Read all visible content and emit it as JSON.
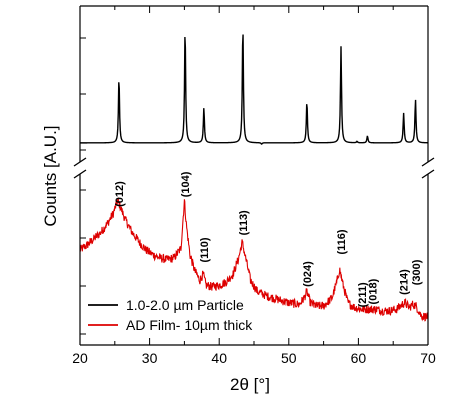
{
  "chart_data": {
    "type": "line",
    "xlabel": "2θ [°]",
    "ylabel": "Counts [A.U.]",
    "xlim": [
      20,
      70
    ],
    "xticks": [
      20,
      30,
      40,
      50,
      60,
      70
    ],
    "y_scale": "arbitrary units, broken axis between panels",
    "series": [
      {
        "name": "1.0-2.0 µm Particle",
        "color": "#000000",
        "panel": "top",
        "baseline": 0.05,
        "peaks": [
          {
            "x": 25.6,
            "y": 0.52
          },
          {
            "x": 35.1,
            "y": 0.87
          },
          {
            "x": 37.8,
            "y": 0.3
          },
          {
            "x": 43.4,
            "y": 0.89
          },
          {
            "x": 46.1,
            "y": 0.04
          },
          {
            "x": 52.6,
            "y": 0.35
          },
          {
            "x": 57.5,
            "y": 0.73
          },
          {
            "x": 59.8,
            "y": 0.06
          },
          {
            "x": 61.3,
            "y": 0.1
          },
          {
            "x": 66.5,
            "y": 0.26
          },
          {
            "x": 68.2,
            "y": 0.36
          }
        ]
      },
      {
        "name": "AD Film- 10µm thick",
        "color": "#dd0000",
        "panel": "bottom",
        "points": [
          [
            20.0,
            0.55
          ],
          [
            21.0,
            0.58
          ],
          [
            22.0,
            0.62
          ],
          [
            23.0,
            0.66
          ],
          [
            24.0,
            0.72
          ],
          [
            24.8,
            0.78
          ],
          [
            25.4,
            0.86
          ],
          [
            25.8,
            0.82
          ],
          [
            26.5,
            0.74
          ],
          [
            27.5,
            0.66
          ],
          [
            28.5,
            0.6
          ],
          [
            29.5,
            0.55
          ],
          [
            30.5,
            0.52
          ],
          [
            31.5,
            0.5
          ],
          [
            32.5,
            0.49
          ],
          [
            33.5,
            0.5
          ],
          [
            34.5,
            0.56
          ],
          [
            35.0,
            0.86
          ],
          [
            35.3,
            0.7
          ],
          [
            35.8,
            0.52
          ],
          [
            36.5,
            0.42
          ],
          [
            37.2,
            0.36
          ],
          [
            37.7,
            0.4
          ],
          [
            38.1,
            0.33
          ],
          [
            39.0,
            0.32
          ],
          [
            40.0,
            0.33
          ],
          [
            41.0,
            0.35
          ],
          [
            42.0,
            0.4
          ],
          [
            42.8,
            0.5
          ],
          [
            43.3,
            0.6
          ],
          [
            43.8,
            0.5
          ],
          [
            44.5,
            0.36
          ],
          [
            45.5,
            0.29
          ],
          [
            47.0,
            0.26
          ],
          [
            48.5,
            0.24
          ],
          [
            50.0,
            0.22
          ],
          [
            51.5,
            0.21
          ],
          [
            52.2,
            0.25
          ],
          [
            52.6,
            0.29
          ],
          [
            53.1,
            0.22
          ],
          [
            54.0,
            0.2
          ],
          [
            55.0,
            0.2
          ],
          [
            56.2,
            0.25
          ],
          [
            56.9,
            0.35
          ],
          [
            57.3,
            0.43
          ],
          [
            57.8,
            0.33
          ],
          [
            58.5,
            0.22
          ],
          [
            59.5,
            0.19
          ],
          [
            60.5,
            0.18
          ],
          [
            61.5,
            0.18
          ],
          [
            62.5,
            0.18
          ],
          [
            63.5,
            0.17
          ],
          [
            64.5,
            0.17
          ],
          [
            65.5,
            0.18
          ],
          [
            66.3,
            0.21
          ],
          [
            66.7,
            0.22
          ],
          [
            67.3,
            0.19
          ],
          [
            67.8,
            0.21
          ],
          [
            68.3,
            0.2
          ],
          [
            69.0,
            0.14
          ],
          [
            70.0,
            0.13
          ]
        ]
      }
    ],
    "peak_labels": [
      {
        "text": "(012)",
        "x": 25.6,
        "y": 0.9
      },
      {
        "text": "(104)",
        "x": 35.1,
        "y": 0.96
      },
      {
        "text": "(110)",
        "x": 37.8,
        "y": 0.55
      },
      {
        "text": "(113)",
        "x": 43.4,
        "y": 0.72
      },
      {
        "text": "(024)",
        "x": 52.6,
        "y": 0.4
      },
      {
        "text": "(116)",
        "x": 57.5,
        "y": 0.6
      },
      {
        "text": "(211)",
        "x": 60.5,
        "y": 0.27
      },
      {
        "text": "(018)",
        "x": 62.0,
        "y": 0.29
      },
      {
        "text": "(214)",
        "x": 66.5,
        "y": 0.35
      },
      {
        "text": "(300)",
        "x": 68.3,
        "y": 0.41
      }
    ],
    "legend": {
      "position": "bottom-left",
      "entries": [
        "1.0-2.0 µm Particle",
        "AD Film- 10µm thick"
      ]
    },
    "axis_break": true
  }
}
